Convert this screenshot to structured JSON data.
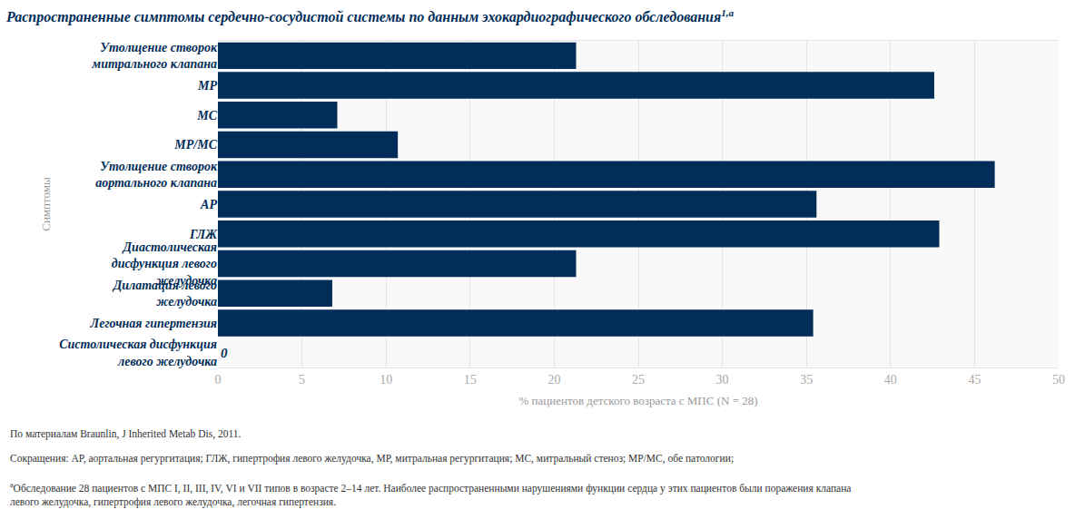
{
  "chart_data": {
    "type": "bar",
    "orientation": "horizontal",
    "title": "Распространенные симптомы сердечно-сосудистой системы по данным эхокардиографического обследования",
    "title_marks": "1,a",
    "y_label": "Симптомы",
    "x_label": "% пациентов детского возраста с МПС (N = 28)",
    "categories": [
      "Утолщение створок митрального клапана",
      "МР",
      "МС",
      "МР/МС",
      "Утолщение створок аортального клапана",
      "АР",
      "ГЛЖ",
      "Диастолическая дисфункция левого желудочка",
      "Дилатация левого желудочка",
      "Легочная гипертензия",
      "Систолическая дисфункция левого желудочка"
    ],
    "values": [
      21.3,
      42.6,
      7.1,
      10.7,
      46.2,
      35.6,
      42.9,
      21.3,
      6.8,
      35.4,
      0
    ],
    "data_labels": true,
    "value_labels": [
      null,
      null,
      null,
      null,
      null,
      null,
      null,
      null,
      null,
      null,
      "0"
    ],
    "color": "#022d58",
    "xlim": [
      0,
      50
    ],
    "xticks": [
      0,
      5,
      10,
      15,
      20,
      25,
      30,
      35,
      40,
      45,
      50
    ],
    "grid": true,
    "notes": [
      "По материалам Braunlin, J Inherited Metab Dis, 2011.",
      "Сокращения: АР, аортальная регургитация; ГЛЖ, гипертрофия левого желудочка, МР, митральная регургитация; МС, митральный стеноз; МР/МС, обе патологии;"
    ],
    "footnote": {
      "mark": "a",
      "lines": [
        "Обследование 28 пациентов с МПС I, II, III, IV, VI и VII типов в возрасте 2–14 лет. Наиболее распространенными нарушениями функции сердца у этих пациентов были поражения клапана",
        "левого желудочка, гипертрофия левого желудочка, легочная гипертензия."
      ]
    }
  }
}
